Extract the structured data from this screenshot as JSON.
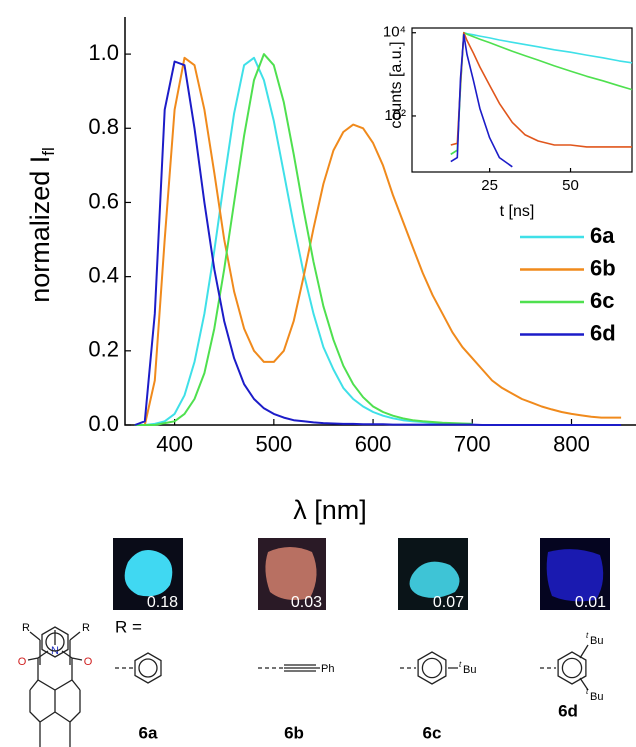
{
  "chart_data": [
    {
      "type": "line",
      "xlabel": "λ [nm]",
      "ylabel": "normalized I",
      "ylabel_sub": "fl",
      "x": [
        360,
        370,
        380,
        390,
        400,
        410,
        420,
        430,
        440,
        450,
        460,
        470,
        480,
        490,
        500,
        510,
        520,
        530,
        540,
        550,
        560,
        570,
        580,
        590,
        600,
        610,
        620,
        630,
        640,
        650,
        660,
        670,
        680,
        690,
        700,
        710,
        720,
        730,
        740,
        750,
        760,
        770,
        780,
        790,
        800,
        810,
        820,
        830,
        840,
        850
      ],
      "series": [
        {
          "name": "6a",
          "color": "#3fe0e8",
          "values": [
            0,
            0,
            0.003,
            0.01,
            0.03,
            0.08,
            0.17,
            0.3,
            0.47,
            0.66,
            0.84,
            0.97,
            0.99,
            0.93,
            0.82,
            0.68,
            0.54,
            0.41,
            0.3,
            0.21,
            0.15,
            0.1,
            0.07,
            0.05,
            0.035,
            0.025,
            0.018,
            0.013,
            0.01,
            0.008,
            0.006,
            0.005,
            0.004,
            0.003,
            0.003,
            null,
            null,
            null,
            null,
            null,
            null,
            null,
            null,
            null,
            null,
            null,
            null,
            null,
            null,
            null
          ]
        },
        {
          "name": "6b",
          "color": "#f08a1c",
          "values": [
            0,
            0,
            0.12,
            0.5,
            0.85,
            0.99,
            0.97,
            0.85,
            0.68,
            0.5,
            0.36,
            0.26,
            0.2,
            0.17,
            0.17,
            0.2,
            0.28,
            0.4,
            0.53,
            0.65,
            0.74,
            0.79,
            0.81,
            0.8,
            0.76,
            0.7,
            0.62,
            0.55,
            0.48,
            0.41,
            0.35,
            0.3,
            0.25,
            0.21,
            0.18,
            0.15,
            0.12,
            0.1,
            0.085,
            0.07,
            0.06,
            0.05,
            0.042,
            0.035,
            0.03,
            0.026,
            0.022,
            0.02,
            0.02,
            0.02
          ]
        },
        {
          "name": "6c",
          "color": "#4fe04f",
          "values": [
            0,
            0,
            0,
            0.005,
            0.01,
            0.03,
            0.07,
            0.14,
            0.26,
            0.42,
            0.6,
            0.78,
            0.93,
            1.0,
            0.97,
            0.87,
            0.73,
            0.58,
            0.44,
            0.32,
            0.23,
            0.16,
            0.11,
            0.075,
            0.05,
            0.035,
            0.025,
            0.018,
            0.013,
            0.01,
            0.008,
            0.006,
            0.005,
            0.004,
            0.003,
            null,
            null,
            null,
            null,
            null,
            null,
            null,
            null,
            null,
            null,
            null,
            null,
            null,
            null,
            null
          ]
        },
        {
          "name": "6d",
          "color": "#1c1cc8",
          "values": [
            0,
            0.01,
            0.3,
            0.85,
            0.98,
            0.97,
            0.8,
            0.6,
            0.42,
            0.28,
            0.18,
            0.11,
            0.07,
            0.045,
            0.03,
            0.02,
            0.013,
            0.01,
            0.007,
            0.005,
            0.004,
            0.003,
            0.003,
            0.002,
            0.002,
            0.002,
            0.001,
            0.001,
            0.001,
            0.001,
            0.001,
            0.001,
            0.001,
            0.001,
            0.001,
            0,
            0,
            0,
            0,
            0,
            0,
            0,
            0,
            0,
            0,
            0,
            0,
            0,
            0,
            0
          ]
        }
      ],
      "xlim": [
        350,
        865
      ],
      "ylim": [
        0,
        1.1
      ],
      "xticks": [
        400,
        500,
        600,
        700,
        800
      ],
      "yticks": [
        {
          "value": 0,
          "label": "0.0"
        },
        0.2,
        0.4,
        0.6,
        0.8,
        {
          "value": 1,
          "label": "1.0"
        }
      ],
      "legend": "right"
    },
    {
      "type": "line",
      "xlabel": "t [ns]",
      "ylabel": "counts [a.u.]",
      "x": [
        13,
        15,
        16,
        17,
        18,
        20,
        22,
        25,
        28,
        32,
        36,
        40,
        45,
        50,
        55,
        60,
        65,
        69
      ],
      "series": [
        {
          "color": "#3fe0e8",
          "values": [
            12,
            15,
            500,
            10000,
            9500,
            8900,
            8300,
            7500,
            6700,
            5900,
            5200,
            4600,
            3900,
            3400,
            2900,
            2500,
            2100,
            1900
          ]
        },
        {
          "color": "#4fe04f",
          "values": [
            12,
            15,
            500,
            10000,
            9200,
            8000,
            7000,
            5800,
            4700,
            3600,
            2800,
            2200,
            1600,
            1200,
            900,
            700,
            530,
            430
          ]
        },
        {
          "color": "#e0561c",
          "values": [
            20,
            22,
            600,
            10000,
            6500,
            3200,
            1500,
            550,
            200,
            70,
            35,
            25,
            20,
            20,
            18,
            18,
            18,
            18
          ]
        },
        {
          "color": "#1c1cc8",
          "values": [
            8,
            10,
            800,
            9000,
            3000,
            700,
            150,
            30,
            10,
            6,
            null,
            null,
            null,
            null,
            null,
            null,
            null,
            null
          ]
        }
      ],
      "xlim": [
        1,
        69
      ],
      "ylim": [
        4.5,
        13000
      ],
      "log_y": true,
      "xticks": [
        25,
        50
      ],
      "yticks": [
        {
          "value": 100,
          "label": "10²"
        },
        {
          "value": 10000,
          "label": "10⁴"
        }
      ]
    }
  ],
  "samples": [
    {
      "label": "6a",
      "quantum_yield": 0.18
    },
    {
      "label": "6b",
      "quantum_yield": 0.03
    },
    {
      "label": "6c",
      "quantum_yield": 0.07
    },
    {
      "label": "6d",
      "quantum_yield": 0.01
    }
  ],
  "r_label": "R =",
  "structure_labels": {
    "r": "R",
    "n": "N",
    "o": "O"
  },
  "substituent_texts": {
    "ph": "Ph",
    "tbu_prefix": "t",
    "tbu": "Bu"
  }
}
